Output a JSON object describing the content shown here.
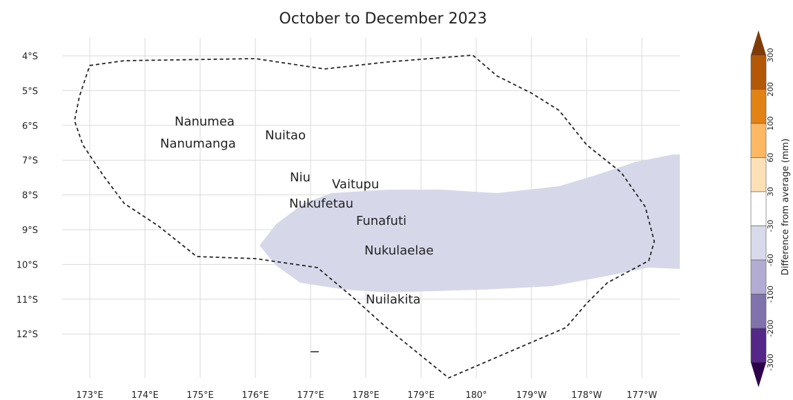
{
  "map": {
    "subtitle": "October to December 2023",
    "lat_labels": [
      "4°S",
      "5°S",
      "6°S",
      "7°S",
      "8°S",
      "9°S",
      "10°S",
      "11°S",
      "12°S"
    ],
    "lon_labels": [
      "173°E",
      "174°E",
      "175°E",
      "176°E",
      "177°E",
      "178°E",
      "179°E",
      "180°",
      "179°W",
      "178°W",
      "177°W"
    ],
    "islands": [
      "Nanumea",
      "Nuitao",
      "Nanumanga",
      "Niu",
      "Vaitupu",
      "Nukufetau",
      "Funafuti",
      "Nukulaelae",
      "Nuilakita"
    ],
    "colorbar": {
      "title": "Difference from average (mm)",
      "labels": [
        "300",
        "200",
        "100",
        "60",
        "30",
        "-30",
        "-60",
        "-100",
        "-200",
        "-300"
      ],
      "colors": [
        "#b35806",
        "#e08214",
        "#fdb863",
        "#fee0b6",
        "#ffffff",
        "#d8daeb",
        "#b2abd2",
        "#8073ac",
        "#542788"
      ],
      "over_color": "#7f3b08",
      "under_color": "#2d004b"
    }
  }
}
